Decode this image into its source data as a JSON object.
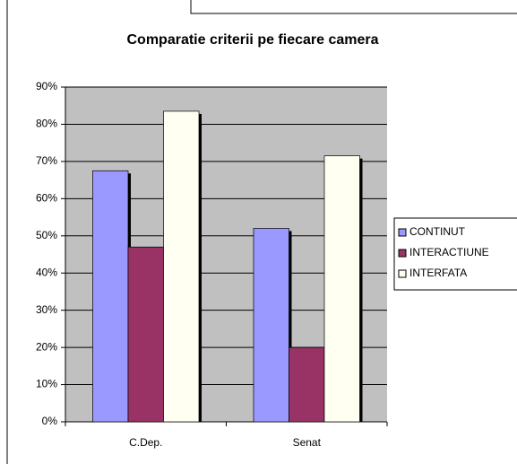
{
  "chart_data": {
    "type": "bar",
    "title": "Comparatie criterii pe fiecare camera",
    "categories": [
      "C.Dep.",
      "Senat"
    ],
    "series": [
      {
        "name": "CONTINUT",
        "color": "#9999ff",
        "values": [
          67.5,
          52
        ]
      },
      {
        "name": "INTERACTIUNE",
        "color": "#993366",
        "values": [
          47,
          20
        ]
      },
      {
        "name": "INTERFATA",
        "color": "#fffff2",
        "values": [
          83.5,
          71.5
        ]
      }
    ],
    "ylim": [
      0,
      90
    ],
    "yticks": [
      {
        "value": 0,
        "label": "0%"
      },
      {
        "value": 10,
        "label": "10%"
      },
      {
        "value": 20,
        "label": "20%"
      },
      {
        "value": 30,
        "label": "30%"
      },
      {
        "value": 40,
        "label": "40%"
      },
      {
        "value": 50,
        "label": "50%"
      },
      {
        "value": 60,
        "label": "60%"
      },
      {
        "value": 70,
        "label": "70%"
      },
      {
        "value": 80,
        "label": "80%"
      },
      {
        "value": 90,
        "label": "90%"
      }
    ],
    "grid": true,
    "legend": "right"
  }
}
